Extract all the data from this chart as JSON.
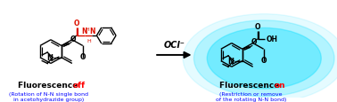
{
  "bg_color": "#ffffff",
  "arrow_text": "OCl⁻",
  "left_title_black": "Fluorescence ",
  "left_title_red": "off",
  "left_subtitle": "(Rotation of N-N single bond\nin acetohydrazide group)",
  "right_title_black": "Fluorescence ",
  "right_title_red": "on",
  "right_subtitle": "(Restriction or remove\nof the rotating N-N bond)",
  "subtitle_color": "#0000ff",
  "title_color_black": "#000000",
  "title_color_red": "#ff0000",
  "glow_color": "#00ddff",
  "glow_alpha": 0.45
}
